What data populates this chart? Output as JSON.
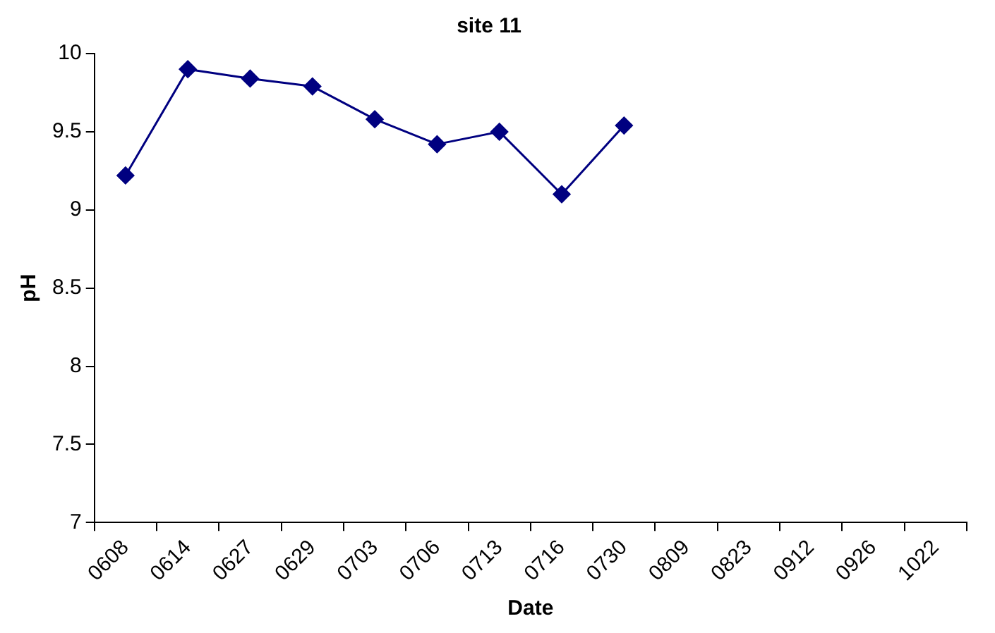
{
  "chart_data": {
    "type": "line",
    "title": "site 11",
    "xlabel": "Date",
    "ylabel": "pH",
    "categories": [
      "0608",
      "0614",
      "0627",
      "0629",
      "0703",
      "0706",
      "0713",
      "0716",
      "0730",
      "0809",
      "0823",
      "0912",
      "0926",
      "1022"
    ],
    "series": [
      {
        "color": "#000080",
        "values": [
          9.22,
          9.9,
          9.84,
          9.79,
          9.58,
          9.42,
          9.5,
          9.1,
          9.54,
          null,
          null,
          null,
          null,
          null
        ]
      }
    ],
    "ylim": [
      7,
      10
    ],
    "yticks": [
      7,
      7.5,
      8,
      8.5,
      9,
      9.5,
      10
    ],
    "grid": false,
    "legend": false,
    "marker": "diamond",
    "line_style": "solid"
  }
}
